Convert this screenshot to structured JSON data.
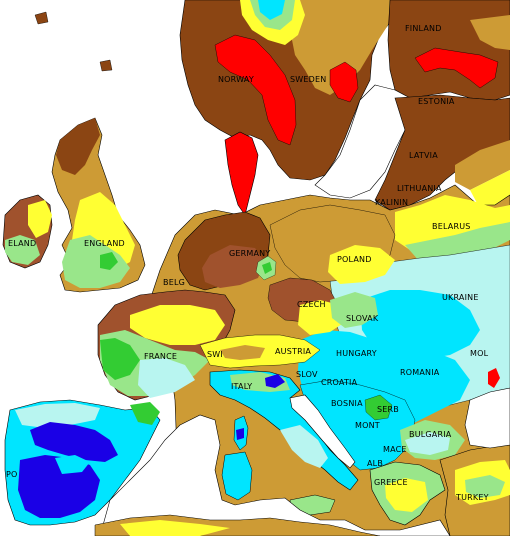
{
  "map": {
    "colors": {
      "sea": "#ffffff",
      "very_dry": "#ff0000",
      "dark_brown": "#8b4513",
      "brown": "#a0522d",
      "tan": "#cd9b35",
      "yellow": "#ffff33",
      "light_green": "#99e68a",
      "green": "#33cc33",
      "light_cyan": "#b8f5f0",
      "cyan": "#00e5ff",
      "blue": "#1a00e6"
    },
    "labels": {
      "finland": "FINLAND",
      "norway": "NORWAY",
      "sweden": "SWEDEN",
      "estonia": "ESTONIA",
      "latvia": "LATVIA",
      "lithuania": "LITHUANIA",
      "belarus": "BELARUS",
      "kalinin": "KALININ",
      "ireland": "ELAND",
      "england": "ENGLAND",
      "germany": "GERMANY",
      "poland": "POLAND",
      "czech": "CZECH",
      "ukraine": "UKRAINE",
      "slovak": "SLOVAK",
      "belgium": "BELG",
      "france": "FRANCE",
      "switzerland": "SWI",
      "austria": "AUSTRIA",
      "hungary": "HUNGARY",
      "romania": "ROMANIA",
      "moldova": "MOL",
      "italy": "ITALY",
      "slovenia": "SLOV",
      "croatia": "CROATIA",
      "bosnia": "BOSNIA",
      "serbia": "SERB",
      "montenegro": "MONT",
      "bulgaria": "BULGARIA",
      "macedonia": "MACE",
      "albania": "ALB",
      "greece": "GREECE",
      "turkey": "TURKEY",
      "portugal": "PO"
    }
  }
}
